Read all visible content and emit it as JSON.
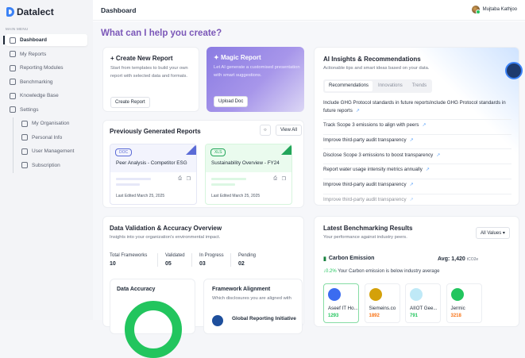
{
  "app": {
    "name": "Datalect"
  },
  "sidebar": {
    "section_label": "MAIN MENU",
    "items": [
      {
        "label": "Dashboard",
        "icon": "dashboard-icon",
        "active": true
      },
      {
        "label": "My Reports",
        "icon": "report-icon"
      },
      {
        "label": "Reporting Modules",
        "icon": "modules-icon"
      },
      {
        "label": "Benchmarking",
        "icon": "pie-chart-icon"
      },
      {
        "label": "Knowledge Base",
        "icon": "book-icon"
      },
      {
        "label": "Settings",
        "icon": "gear-icon"
      }
    ],
    "settings_items": [
      {
        "label": "My Organisation",
        "icon": "bank-icon"
      },
      {
        "label": "Personal Info",
        "icon": "user-icon"
      },
      {
        "label": "User Management",
        "icon": "users-icon"
      },
      {
        "label": "Subscription",
        "icon": "calendar-icon"
      }
    ]
  },
  "header": {
    "title": "Dashboard",
    "user": "Mujtaba Kathjoo"
  },
  "main": {
    "heading": "What can I help you create?",
    "create": {
      "title": "Create New Report",
      "desc": "Start from templates to build your own report with selected data and formats.",
      "button": "Create Report"
    },
    "magic": {
      "title": "Magic Report",
      "desc": "Let AI generate a customised presentation with smart suggestions.",
      "button": "Upload Doc"
    },
    "previous": {
      "title": "Previously Generated Reports",
      "view_all": "View All",
      "reports": [
        {
          "type": "DOC",
          "name": "Peer Analysis - Competitor ESG",
          "edited": "Last Edited March 25, 2025",
          "color": "#5b6bd6"
        },
        {
          "type": "XLS",
          "name": "Sustainability Overview - FY24",
          "edited": "Last Edited March 25, 2025",
          "color": "#22a55a"
        }
      ]
    },
    "insights": {
      "title": "AI Insights & Recommendations",
      "subtitle": "Actionable tips and smart ideas based on your data.",
      "tabs": [
        "Recommendations",
        "Innovations",
        "Trends"
      ],
      "items": [
        "Include GHG Protocol standards in future reportsInclude GHG Protocol standards in future reports",
        "Track Scope 3 emissions to align with peers",
        "Improve third-party audit transparency",
        "Disclose Scope 3 emissions to boost transparency",
        "Report water usage intensity metrics annually",
        "Improve third-party audit transparency",
        "Improve third-party audit transparency"
      ]
    },
    "validation": {
      "title": "Data Validation & Accuracy Overview",
      "subtitle": "Insights into your organization's environmental impact.",
      "stats": [
        {
          "label": "Total Frameworks",
          "value": "10"
        },
        {
          "label": "Validated",
          "value": "05"
        },
        {
          "label": "In Progress",
          "value": "03"
        },
        {
          "label": "Pending",
          "value": "02"
        }
      ],
      "accuracy_title": "Data Accuracy",
      "alignment_title": "Framework Alignment",
      "alignment_sub": "Which disclosures you are aligned with",
      "framework": "Global Reporting Initiative"
    },
    "benchmark": {
      "title": "Latest Benchmarking Results",
      "subtitle": "Your performance against industry peers.",
      "filter": "All Values",
      "metric": "Carbon Emission",
      "avg_label": "Avg: 1,420",
      "avg_unit": "tCO2e",
      "delta": "0.2%",
      "delta_text": "Your Carbon emission is below industry average",
      "peers": [
        {
          "name": "Aseef IT Ho...",
          "value": "1293",
          "color": "#22c55e",
          "logo": "#3b6cf0"
        },
        {
          "name": "Siemeins.co",
          "value": "1892",
          "color": "#f97316",
          "logo": "#d4a10a"
        },
        {
          "name": "AIIOT Gee...",
          "value": "791",
          "color": "#22c55e",
          "logo": "#bfe9f7"
        },
        {
          "name": "Jermic",
          "value": "3218",
          "color": "#f97316",
          "logo": "#22c55e"
        }
      ]
    }
  }
}
